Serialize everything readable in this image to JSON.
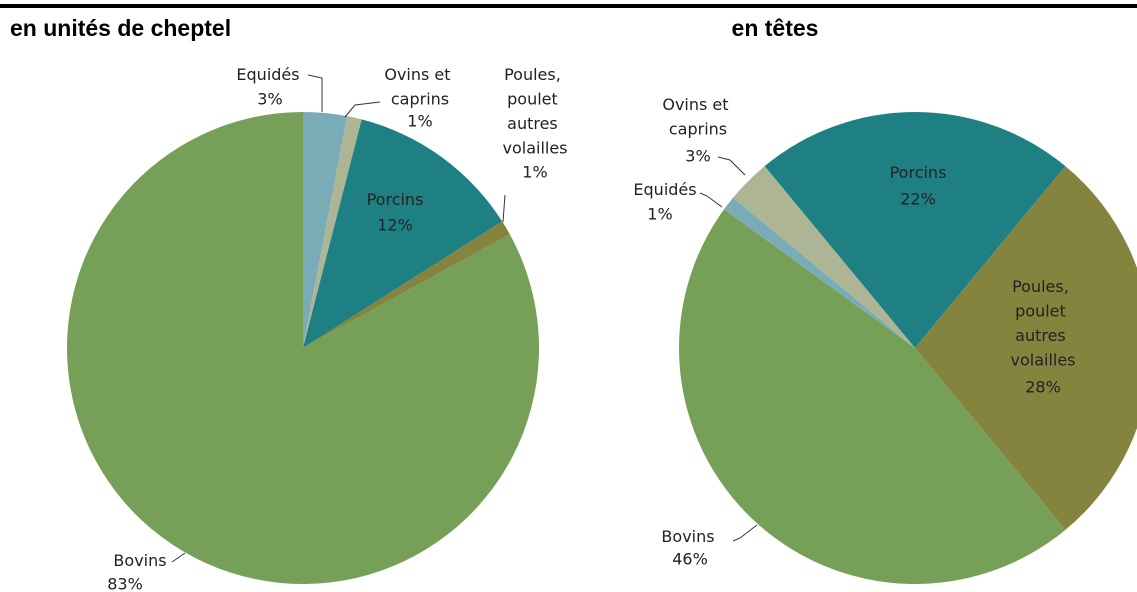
{
  "chart_data": [
    {
      "type": "pie",
      "title": "en unités de cheptel",
      "categories": [
        "Equidés",
        "Ovins et caprins",
        "Porcins",
        "Poules, poulet autres volailles",
        "Bovins"
      ],
      "values": [
        3,
        1,
        12,
        1,
        83
      ],
      "value_labels": [
        "3%",
        "1%",
        "12%",
        "1%",
        "83%"
      ],
      "colors": [
        "#7aacb8",
        "#aeb595",
        "#1f8084",
        "#85843f",
        "#76a057"
      ]
    },
    {
      "type": "pie",
      "title": "en têtes",
      "categories": [
        "Porcins",
        "Poules, poulet autres volailles",
        "Bovins",
        "Equidés",
        "Ovins et caprins"
      ],
      "values": [
        22,
        28,
        46,
        1,
        3
      ],
      "value_labels": [
        "22%",
        "28%",
        "46%",
        "1%",
        "3%"
      ],
      "colors": [
        "#1f8084",
        "#85843f",
        "#76a057",
        "#7aacb8",
        "#aeb595"
      ]
    }
  ]
}
